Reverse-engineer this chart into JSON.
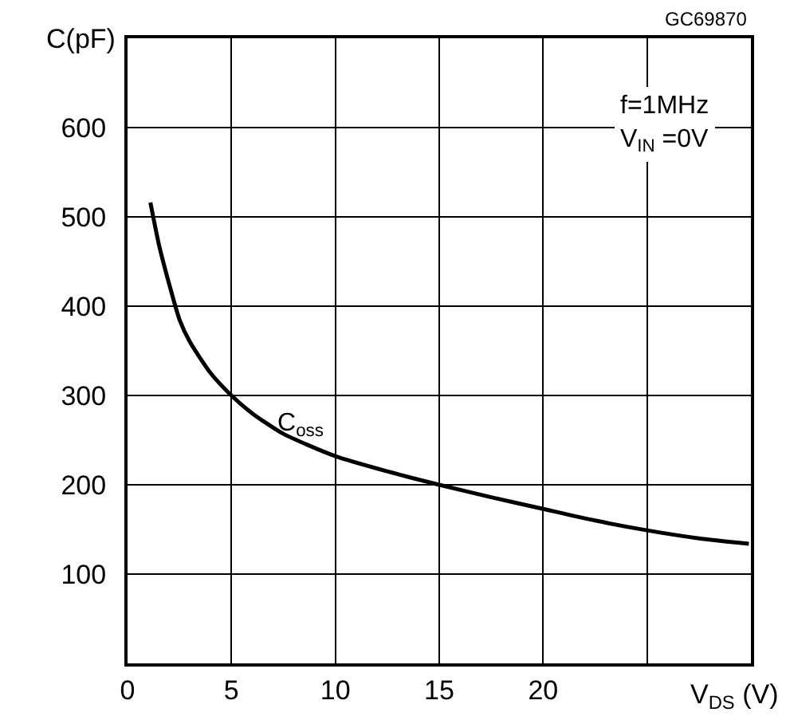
{
  "chart_data": {
    "type": "line",
    "xlabel": "V$_{DS}$ (V)",
    "ylabel": "C(pF)",
    "annotations": [
      "GC69870",
      "f=1MHz\nV$_{IN}$ =0V"
    ],
    "series": [
      {
        "name": "C$_{oss}$",
        "color": "#000000",
        "x": [
          1.1,
          1.5,
          2,
          2.5,
          3,
          4,
          5,
          6,
          7.5,
          10,
          12.5,
          15,
          17.5,
          20,
          22.5,
          25,
          27.5,
          29.9
        ],
        "values": [
          516,
          470,
          425,
          385,
          360,
          325,
          300,
          280,
          257,
          232,
          215,
          200,
          186,
          173,
          160,
          149,
          140,
          134
        ]
      }
    ],
    "xlim": [
      0,
      30
    ],
    "xticks": [
      0,
      5,
      10,
      15,
      20,
      {
        "value": 25,
        "label": null
      }
    ],
    "ylim": [
      0,
      700
    ],
    "yticks": [
      100,
      200,
      300,
      400,
      500,
      600
    ],
    "grid": true,
    "legend": false,
    "marker": "none",
    "line_style": "solid"
  }
}
